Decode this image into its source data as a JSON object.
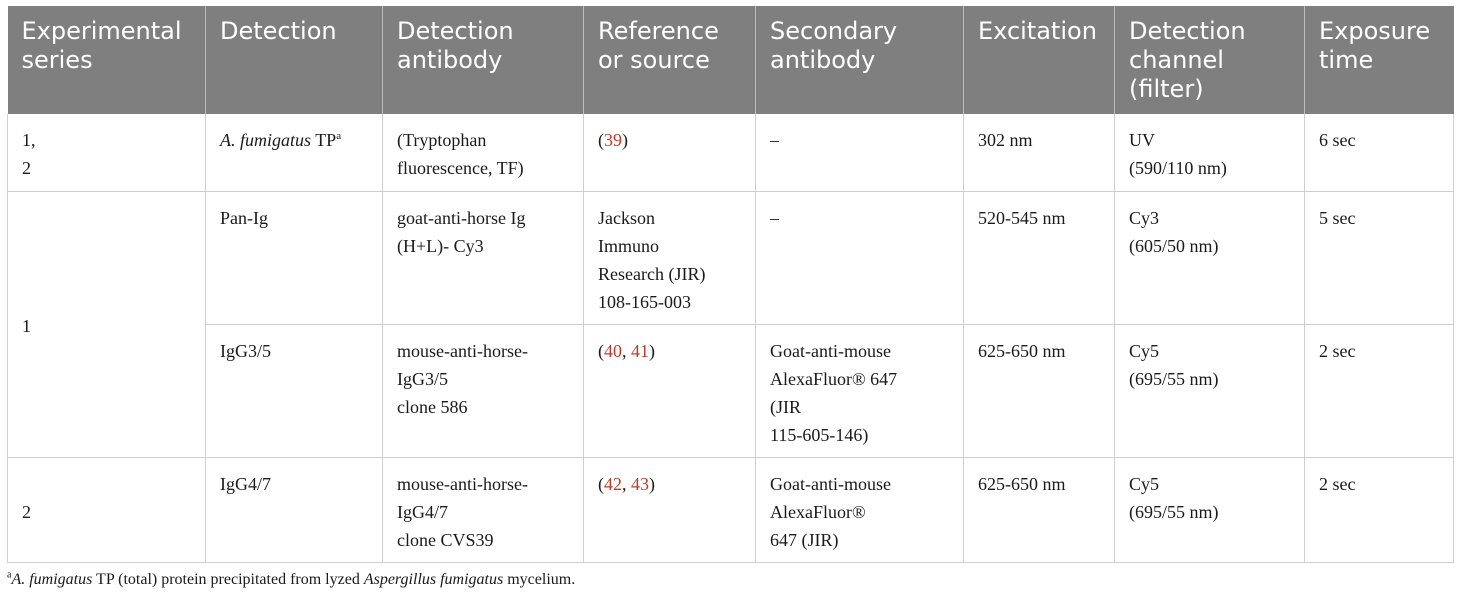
{
  "table": {
    "headers": [
      [
        "Experimental",
        "series"
      ],
      [
        "Detection"
      ],
      [
        "Detection",
        "antibody"
      ],
      [
        "Reference",
        "or source"
      ],
      [
        "Secondary",
        "antibody"
      ],
      [
        "Excitation"
      ],
      [
        "Detection",
        "channel",
        "(filter)"
      ],
      [
        "Exposure",
        "time"
      ]
    ],
    "rows": [
      {
        "series": [
          "1,",
          "2"
        ],
        "detection_italic": "A. fumigatus",
        "detection_rest": " TP",
        "detection_sup": "a",
        "antibody": [
          "(Tryptophan",
          "fluorescence, TF)"
        ],
        "ref_open": "(",
        "ref_links": [
          "39"
        ],
        "ref_close": ")",
        "secondary": [
          "–"
        ],
        "excitation": "302 nm",
        "channel": [
          "UV",
          "(590/110 nm)"
        ],
        "exposure": "6 sec"
      },
      {
        "series": [
          "1"
        ],
        "detection": "Pan-Ig",
        "antibody": [
          "goat-anti-horse Ig",
          "(H+L)- Cy3"
        ],
        "ref_text": [
          "Jackson",
          "Immuno",
          "Research (JIR)",
          "108-165-003"
        ],
        "secondary": [
          "–"
        ],
        "excitation": "520-545 nm",
        "channel": [
          "Cy3",
          "(605/50 nm)"
        ],
        "exposure": "5 sec"
      },
      {
        "detection": "IgG3/5",
        "antibody": [
          "mouse-anti-horse-",
          "IgG3/5",
          "clone 586"
        ],
        "ref_open": "(",
        "ref_links": [
          "40",
          "41"
        ],
        "ref_sep": ", ",
        "ref_close": ")",
        "secondary": [
          "Goat-anti-mouse",
          "AlexaFluor® 647",
          "(JIR",
          "115-605-146)"
        ],
        "excitation": "625-650 nm",
        "channel": [
          "Cy5",
          "(695/55 nm)"
        ],
        "exposure": "2 sec"
      },
      {
        "series": [
          "2"
        ],
        "detection": "IgG4/7",
        "antibody": [
          "mouse-anti-horse-",
          "IgG4/7",
          "clone CVS39"
        ],
        "ref_open": "(",
        "ref_links": [
          "42",
          "43"
        ],
        "ref_sep": ", ",
        "ref_close": ")",
        "secondary": [
          "Goat-anti-mouse",
          "AlexaFluor®",
          "647 (JIR)"
        ],
        "excitation": "625-650 nm",
        "channel": [
          "Cy5",
          "(695/55 nm)"
        ],
        "exposure": "2 sec"
      }
    ]
  },
  "footnote": {
    "sup": "a",
    "italic1": "A. fumigatus",
    "text1": " TP (total) protein precipitated from lyzed ",
    "italic2": "Aspergillus fumigatus",
    "text2": " mycelium."
  },
  "colors": {
    "header_bg": "#7f7f7f",
    "header_text": "#ffffff",
    "link": "#c0392b",
    "border": "#cfcfcf"
  }
}
